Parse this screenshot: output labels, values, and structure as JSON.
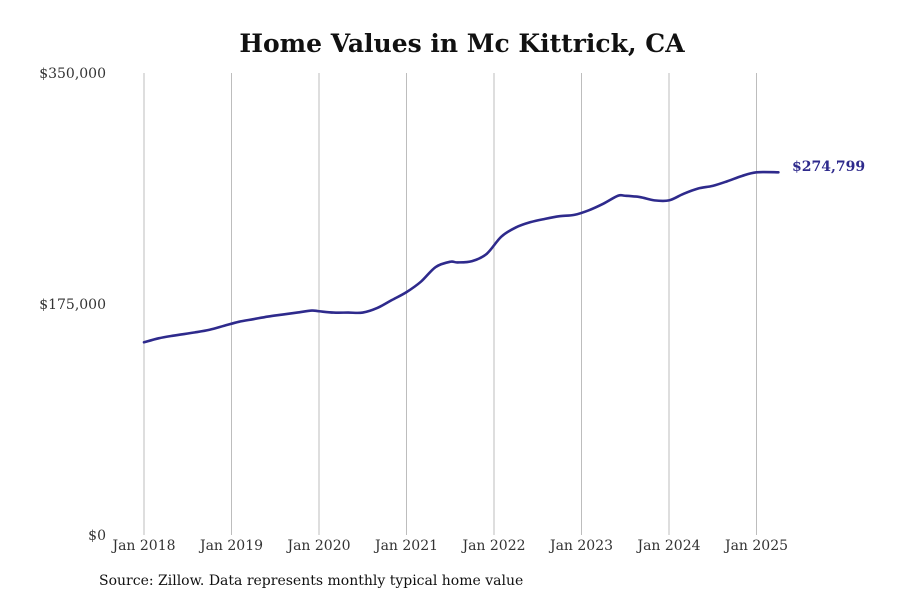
{
  "chart_data": {
    "type": "line",
    "title": "Home Values in Mc Kittrick, CA",
    "xlabel": "",
    "ylabel": "",
    "x_tick_labels": [
      "Jan 2018",
      "Jan 2019",
      "Jan 2020",
      "Jan 2021",
      "Jan 2022",
      "Jan 2023",
      "Jan 2024",
      "Jan 2025"
    ],
    "y_tick_labels": [
      "$350,000",
      "$175,000",
      "$0"
    ],
    "y_ticks": [
      350000,
      175000,
      0
    ],
    "ylim": [
      0,
      350000
    ],
    "x_range": [
      "2018-01",
      "2025-04"
    ],
    "grid": "vertical",
    "line_color": "#2e2a8c",
    "end_label": "$274,799",
    "series": [
      {
        "x": [
          "2018-01",
          "2018-03",
          "2018-05",
          "2018-08",
          "2018-10",
          "2018-12",
          "2019-02",
          "2019-04",
          "2019-06",
          "2019-08",
          "2019-10",
          "2019-12",
          "2020-01",
          "2020-03",
          "2020-05",
          "2020-07",
          "2020-09",
          "2020-11",
          "2021-01",
          "2021-03",
          "2021-05",
          "2021-07",
          "2021-08",
          "2021-10",
          "2021-12",
          "2022-02",
          "2022-04",
          "2022-06",
          "2022-08",
          "2022-10",
          "2022-12",
          "2023-02",
          "2023-04",
          "2023-06",
          "2023-07",
          "2023-09",
          "2023-11",
          "2024-01",
          "2024-03",
          "2024-05",
          "2024-07",
          "2024-09",
          "2024-11",
          "2025-01",
          "2025-04"
        ],
        "values": [
          146000,
          149000,
          151000,
          153500,
          155500,
          158500,
          161500,
          163500,
          165500,
          167000,
          168500,
          170000,
          169500,
          168500,
          168500,
          168500,
          172000,
          178000,
          184000,
          192000,
          203000,
          207000,
          206500,
          207500,
          213000,
          226000,
          233000,
          237000,
          239500,
          241500,
          242500,
          246000,
          251000,
          257000,
          257000,
          256000,
          253500,
          253500,
          258500,
          262500,
          264500,
          268000,
          272000,
          274799,
          274799
        ]
      }
    ]
  },
  "source_note": "Source: Zillow. Data represents monthly typical home value"
}
